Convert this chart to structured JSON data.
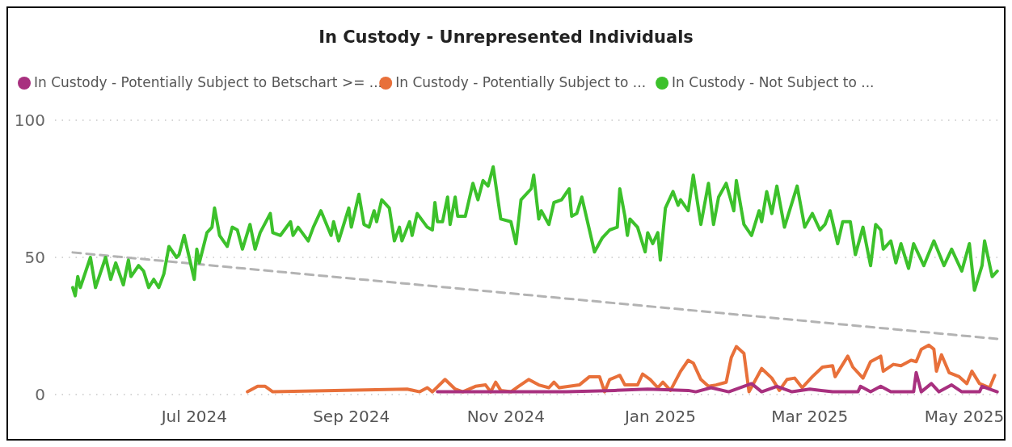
{
  "chart_data": {
    "type": "line",
    "title": "In Custody - Unrepresented Individuals",
    "xlim": [
      "2024-05-07",
      "2025-05-16"
    ],
    "xticks": [
      {
        "value": "2024-07-01",
        "label": "Jul 2024"
      },
      {
        "value": "2024-09-01",
        "label": "Sep 2024"
      },
      {
        "value": "2024-11-01",
        "label": "Nov 2024"
      },
      {
        "value": "2025-01-01",
        "label": "Jan 2025"
      },
      {
        "value": "2025-03-01",
        "label": "Mar 2025"
      },
      {
        "value": "2025-05-01",
        "label": "May 2025"
      }
    ],
    "ylim": [
      0,
      100
    ],
    "yticks": [
      0,
      50,
      100
    ],
    "grid": "y",
    "legend": "top left",
    "line_style": "solid",
    "marker": "none",
    "series": [
      {
        "name": "In Custody - Potentially Subject to Betschart >= ...",
        "color": "#a8307f",
        "x": [
          "2024-10-05",
          "2024-10-24",
          "2024-11-25",
          "2024-12-14",
          "2024-12-27",
          "2025-01-12",
          "2025-01-15",
          "2025-01-21",
          "2025-01-28",
          "2025-02-06",
          "2025-02-10",
          "2025-02-16",
          "2025-02-22",
          "2025-03-01",
          "2025-03-10",
          "2025-03-20",
          "2025-03-21",
          "2025-03-25",
          "2025-03-29",
          "2025-04-02",
          "2025-04-11",
          "2025-04-12",
          "2025-04-14",
          "2025-04-18",
          "2025-04-21",
          "2025-04-26",
          "2025-04-30",
          "2025-05-07",
          "2025-05-08",
          "2025-05-14"
        ],
        "values": [
          1,
          1,
          1,
          1.5,
          2,
          1.5,
          1,
          2.5,
          1,
          4,
          1,
          3,
          1,
          2,
          1,
          1,
          3,
          1,
          3,
          1,
          1,
          8,
          1,
          4,
          1,
          3.5,
          1,
          1,
          3,
          1
        ]
      },
      {
        "name": "In Custody - Potentially Subject to ...",
        "color": "#e8703a",
        "x": [
          "2024-07-22",
          "2024-07-26",
          "2024-07-29",
          "2024-08-01",
          "2024-09-23",
          "2024-09-28",
          "2024-10-01",
          "2024-10-03",
          "2024-10-08",
          "2024-10-12",
          "2024-10-15",
          "2024-10-20",
          "2024-10-24",
          "2024-10-26",
          "2024-10-28",
          "2024-10-30",
          "2024-11-03",
          "2024-11-06",
          "2024-11-10",
          "2024-11-14",
          "2024-11-18",
          "2024-11-20",
          "2024-11-22",
          "2024-11-26",
          "2024-11-30",
          "2024-12-04",
          "2024-12-08",
          "2024-12-10",
          "2024-12-12",
          "2024-12-16",
          "2024-12-18",
          "2024-12-23",
          "2024-12-25",
          "2024-12-28",
          "2024-12-31",
          "2025-01-02",
          "2025-01-05",
          "2025-01-09",
          "2025-01-12",
          "2025-01-14",
          "2025-01-17",
          "2025-01-20",
          "2025-01-23",
          "2025-01-27",
          "2025-01-29",
          "2025-01-31",
          "2025-02-03",
          "2025-02-05",
          "2025-02-10",
          "2025-02-14",
          "2025-02-17",
          "2025-02-20",
          "2025-02-23",
          "2025-02-26",
          "2025-03-02",
          "2025-03-06",
          "2025-03-10",
          "2025-03-11",
          "2025-03-16",
          "2025-03-18",
          "2025-03-22",
          "2025-03-25",
          "2025-03-29",
          "2025-03-30",
          "2025-04-03",
          "2025-04-06",
          "2025-04-10",
          "2025-04-12",
          "2025-04-14",
          "2025-04-17",
          "2025-04-19",
          "2025-04-20",
          "2025-04-22",
          "2025-04-25",
          "2025-04-29",
          "2025-05-02",
          "2025-05-04",
          "2025-05-07",
          "2025-05-11",
          "2025-05-13"
        ],
        "values": [
          1,
          3,
          3,
          1,
          2,
          1,
          2.5,
          1,
          5.5,
          2,
          1,
          3,
          3.5,
          1,
          4.5,
          1.5,
          1,
          3,
          5.5,
          3.5,
          2.5,
          4.5,
          2.5,
          3,
          3.5,
          6.5,
          6.5,
          1,
          5.5,
          7,
          3.5,
          3.5,
          7.5,
          5.5,
          2.5,
          4.5,
          1.5,
          8.5,
          12.5,
          11.5,
          5.5,
          3,
          3.5,
          4.5,
          13.5,
          17.5,
          15,
          1,
          9.5,
          6,
          1.5,
          5.5,
          6,
          2.5,
          6.5,
          10,
          10.5,
          6.5,
          14,
          10,
          6,
          12,
          14,
          8.5,
          11,
          10.5,
          12.5,
          12,
          16.5,
          18,
          16.5,
          8.5,
          14.5,
          8,
          6.5,
          4,
          8.5,
          4,
          2.5,
          7
        ]
      },
      {
        "name": "In Custody - Not Subject to ...",
        "color": "#3cc12b",
        "x": [
          "2024-05-14",
          "2024-05-15",
          "2024-05-16",
          "2024-05-17",
          "2024-05-21",
          "2024-05-23",
          "2024-05-27",
          "2024-05-29",
          "2024-05-31",
          "2024-06-03",
          "2024-06-05",
          "2024-06-06",
          "2024-06-09",
          "2024-06-11",
          "2024-06-13",
          "2024-06-15",
          "2024-06-17",
          "2024-06-19",
          "2024-06-21",
          "2024-06-24",
          "2024-06-25",
          "2024-06-27",
          "2024-07-01",
          "2024-07-02",
          "2024-07-03",
          "2024-07-06",
          "2024-07-08",
          "2024-07-09",
          "2024-07-11",
          "2024-07-14",
          "2024-07-16",
          "2024-07-18",
          "2024-07-20",
          "2024-07-23",
          "2024-07-25",
          "2024-07-27",
          "2024-07-31",
          "2024-08-01",
          "2024-08-04",
          "2024-08-08",
          "2024-08-09",
          "2024-08-11",
          "2024-08-15",
          "2024-08-17",
          "2024-08-20",
          "2024-08-24",
          "2024-08-25",
          "2024-08-27",
          "2024-08-31",
          "2024-09-01",
          "2024-09-04",
          "2024-09-06",
          "2024-09-08",
          "2024-09-10",
          "2024-09-11",
          "2024-09-13",
          "2024-09-16",
          "2024-09-18",
          "2024-09-20",
          "2024-09-21",
          "2024-09-24",
          "2024-09-25",
          "2024-09-27",
          "2024-10-01",
          "2024-10-03",
          "2024-10-04",
          "2024-10-05",
          "2024-10-07",
          "2024-10-09",
          "2024-10-10",
          "2024-10-12",
          "2024-10-13",
          "2024-10-16",
          "2024-10-19",
          "2024-10-21",
          "2024-10-23",
          "2024-10-25",
          "2024-10-27",
          "2024-10-30",
          "2024-11-03",
          "2024-11-05",
          "2024-11-07",
          "2024-11-11",
          "2024-11-12",
          "2024-11-14",
          "2024-11-15",
          "2024-11-18",
          "2024-11-20",
          "2024-11-23",
          "2024-11-26",
          "2024-11-27",
          "2024-11-29",
          "2024-12-01",
          "2024-12-04",
          "2024-12-06",
          "2024-12-09",
          "2024-12-12",
          "2024-12-15",
          "2024-12-16",
          "2024-12-18",
          "2024-12-19",
          "2024-12-20",
          "2024-12-23",
          "2024-12-26",
          "2024-12-27",
          "2024-12-29",
          "2024-12-31",
          "2025-01-01",
          "2025-01-03",
          "2025-01-06",
          "2025-01-08",
          "2025-01-09",
          "2025-01-12",
          "2025-01-14",
          "2025-01-17",
          "2025-01-20",
          "2025-01-22",
          "2025-01-24",
          "2025-01-27",
          "2025-01-30",
          "2025-01-31",
          "2025-02-03",
          "2025-02-06",
          "2025-02-09",
          "2025-02-10",
          "2025-02-12",
          "2025-02-14",
          "2025-02-16",
          "2025-02-19",
          "2025-02-21",
          "2025-02-24",
          "2025-02-27",
          "2025-03-02",
          "2025-03-05",
          "2025-03-07",
          "2025-03-09",
          "2025-03-12",
          "2025-03-14",
          "2025-03-17",
          "2025-03-19",
          "2025-03-22",
          "2025-03-25",
          "2025-03-27",
          "2025-03-29",
          "2025-03-30",
          "2025-04-02",
          "2025-04-04",
          "2025-04-06",
          "2025-04-09",
          "2025-04-11",
          "2025-04-15",
          "2025-04-19",
          "2025-04-23",
          "2025-04-26",
          "2025-04-30",
          "2025-05-03",
          "2025-05-05",
          "2025-05-08",
          "2025-05-09",
          "2025-05-12",
          "2025-05-14"
        ],
        "values": [
          39,
          36,
          43,
          39,
          50,
          39,
          50,
          42,
          48,
          40,
          49,
          43,
          47,
          45,
          39,
          42,
          39,
          44,
          54,
          50,
          51,
          58,
          42,
          53,
          48,
          59,
          61,
          68,
          58,
          54,
          61,
          60,
          53,
          62,
          53,
          59,
          66,
          59,
          58,
          63,
          58,
          61,
          56,
          61,
          67,
          58,
          63,
          56,
          68,
          61,
          73,
          62,
          61,
          67,
          63,
          71,
          68,
          56,
          61,
          56,
          63,
          58,
          66,
          61,
          60,
          70,
          63,
          63,
          72,
          62,
          72,
          65,
          65,
          77,
          71,
          78,
          76,
          83,
          64,
          63,
          55,
          71,
          75,
          80,
          64,
          67,
          62,
          70,
          71,
          75,
          65,
          66,
          72,
          60,
          52,
          57,
          60,
          61,
          75,
          65,
          58,
          64,
          61,
          52,
          59,
          55,
          59,
          49,
          68,
          74,
          69,
          71,
          67,
          80,
          62,
          77,
          62,
          72,
          77,
          67,
          78,
          62,
          58,
          67,
          63,
          74,
          66,
          76,
          61,
          67,
          76,
          61,
          66,
          60,
          62,
          67,
          55,
          63,
          63,
          51,
          61,
          47,
          62,
          60,
          53,
          56,
          48,
          55,
          46,
          55,
          47,
          56,
          47,
          53,
          45,
          55,
          38,
          47,
          56,
          43,
          45
        ]
      },
      {
        "type": "line",
        "color": "#b3b3b3",
        "line_style": "dashed",
        "x": [
          "2024-05-14",
          "2025-05-14"
        ],
        "values": [
          51.8,
          20.3
        ]
      }
    ]
  }
}
